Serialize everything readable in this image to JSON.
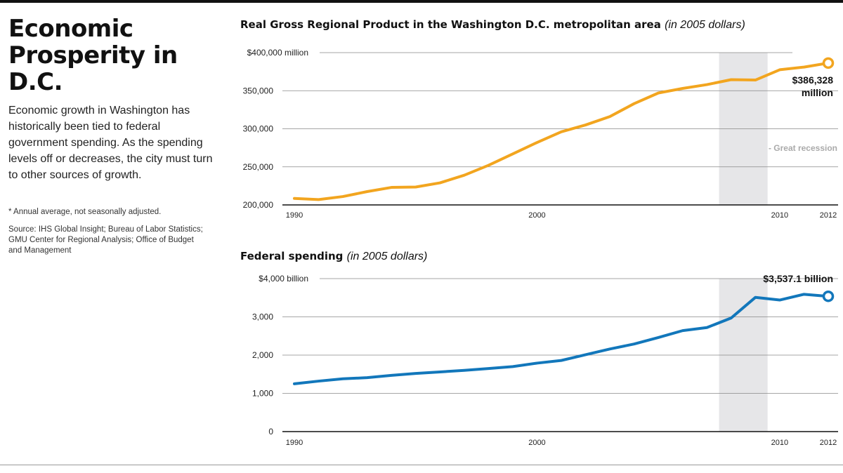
{
  "headline": "Economic Prosperity in D.C.",
  "dek": "Economic growth in Washington has historically been tied to federal government spending. As the spending levels off or decreases, the city must turn to other sources of growth.",
  "footnote": "* Annual average, not seasonally adjusted.",
  "source": "Source: IHS Global Insight; Bureau of Labor Statistics; GMU Center for Regional Analysis; Office of Budget and Management",
  "colors": {
    "gdp_line": "#f2a51f",
    "federal_line": "#1277bb",
    "recession_band": "#e6e6e8",
    "gridline": "#888888"
  },
  "chart_data": [
    {
      "id": "gdp",
      "type": "line",
      "title": "Real Gross Regional Product in the Washington D.C. metropolitan area",
      "title_unit": "(in 2005 dollars)",
      "ylim": [
        200000,
        400000
      ],
      "xlim": [
        1990,
        2012
      ],
      "y_ticks": [
        {
          "value": 400000,
          "label": "$400,000 million"
        },
        {
          "value": 350000,
          "label": "350,000"
        },
        {
          "value": 300000,
          "label": "300,000"
        },
        {
          "value": 250000,
          "label": "250,000"
        },
        {
          "value": 200000,
          "label": "200,000"
        }
      ],
      "x_ticks": [
        {
          "value": 1990,
          "label": "1990"
        },
        {
          "value": 2000,
          "label": "2000"
        },
        {
          "value": 2010,
          "label": "2010"
        },
        {
          "value": 2012,
          "label": "2012"
        }
      ],
      "shaded_range": {
        "from": 2007.5,
        "to": 2009.5,
        "label": "- Great recession"
      },
      "grid": true,
      "series": [
        {
          "x": [
            1990,
            1991,
            1992,
            1993,
            1994,
            1995,
            1996,
            1997,
            1998,
            1999,
            2000,
            2001,
            2002,
            2003,
            2004,
            2005,
            2006,
            2007,
            2008,
            2009,
            2010,
            2011,
            2012
          ],
          "values": [
            208500,
            207000,
            211000,
            217500,
            223000,
            223500,
            229000,
            239000,
            252000,
            267000,
            282000,
            296000,
            305000,
            316000,
            333000,
            347000,
            353000,
            358000,
            364500,
            364000,
            377500,
            381000,
            386328
          ]
        }
      ],
      "end_label": [
        "$386,328",
        "million"
      ]
    },
    {
      "id": "federal",
      "type": "line",
      "title": "Federal spending",
      "title_unit": "(in 2005 dollars)",
      "ylim": [
        0,
        4000
      ],
      "xlim": [
        1990,
        2012
      ],
      "y_ticks": [
        {
          "value": 4000,
          "label": "$4,000 billion"
        },
        {
          "value": 3000,
          "label": "3,000"
        },
        {
          "value": 2000,
          "label": "2,000"
        },
        {
          "value": 1000,
          "label": "1,000"
        },
        {
          "value": 0,
          "label": "0"
        }
      ],
      "x_ticks": [
        {
          "value": 1990,
          "label": "1990"
        },
        {
          "value": 2000,
          "label": "2000"
        },
        {
          "value": 2010,
          "label": "2010"
        },
        {
          "value": 2012,
          "label": "2012"
        }
      ],
      "shaded_range": {
        "from": 2007.5,
        "to": 2009.5
      },
      "grid": true,
      "series": [
        {
          "x": [
            1990,
            1991,
            1992,
            1993,
            1994,
            1995,
            1996,
            1997,
            1998,
            1999,
            2000,
            2001,
            2002,
            2003,
            2004,
            2005,
            2006,
            2007,
            2008,
            2009,
            2010,
            2011,
            2012
          ],
          "values": [
            1250,
            1320,
            1380,
            1410,
            1470,
            1520,
            1560,
            1600,
            1650,
            1700,
            1790,
            1860,
            2010,
            2160,
            2290,
            2460,
            2640,
            2720,
            2970,
            3510,
            3440,
            3590,
            3537.1
          ]
        }
      ],
      "end_label": [
        "$3,537.1 billion"
      ]
    }
  ]
}
